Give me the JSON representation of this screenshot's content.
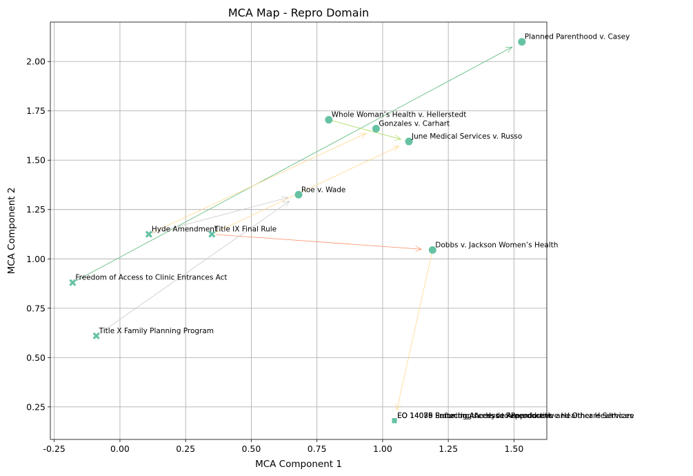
{
  "chart_data": {
    "type": "scatter",
    "title": "MCA Map - Repro Domain",
    "xlabel": "MCA Component 1",
    "ylabel": "MCA Component 2",
    "xlim": [
      -0.265,
      1.625
    ],
    "ylim": [
      0.085,
      2.2
    ],
    "xticks": [
      -0.25,
      0.0,
      0.25,
      0.5,
      0.75,
      1.0,
      1.25,
      1.5
    ],
    "yticks": [
      0.25,
      0.5,
      0.75,
      1.0,
      1.25,
      1.5,
      1.75,
      2.0
    ],
    "grid": true,
    "marker_color": "#66c2a5",
    "cases": [
      {
        "id": "casey",
        "label": "Planned Parenthood v. Casey",
        "x": 1.53,
        "y": 2.1
      },
      {
        "id": "whole",
        "label": "Whole Woman’s Health v. Hellerstedt",
        "x": 0.795,
        "y": 1.705
      },
      {
        "id": "gonzales",
        "label": "Gonzales v. Carhart",
        "x": 0.975,
        "y": 1.66
      },
      {
        "id": "june",
        "label": "June Medical Services v. Russo",
        "x": 1.1,
        "y": 1.595
      },
      {
        "id": "roe",
        "label": "Roe v. Wade",
        "x": 0.68,
        "y": 1.325
      },
      {
        "id": "dobbs",
        "label": "Dobbs v. Jackson Women’s Health",
        "x": 1.19,
        "y": 1.045
      }
    ],
    "laws": [
      {
        "id": "hyde",
        "label": "Hyde Amendment",
        "x": 0.11,
        "y": 1.125
      },
      {
        "id": "titleix",
        "label": "Title IX Final Rule",
        "x": 0.35,
        "y": 1.125
      },
      {
        "id": "face",
        "label": "Freedom of Access to Clinic Entrances Act",
        "x": -0.18,
        "y": 0.88
      },
      {
        "id": "titlex",
        "label": "Title X Family Planning Program",
        "x": -0.09,
        "y": 0.61
      }
    ],
    "orders": [
      {
        "id": "eo1",
        "label": "EO 14076 Protecting Access to Reproductive Healthcare Services",
        "x": 1.045,
        "y": 0.18
      },
      {
        "id": "eo2",
        "label": "EO 14079 Securing Access to Reproductive and Other Healthcare",
        "x": 1.045,
        "y": 0.18
      },
      {
        "id": "eo3",
        "label": "EO 14085 Enforcing the Hyde Amendment",
        "x": 1.045,
        "y": 0.18
      }
    ],
    "arrows": [
      {
        "from": "face",
        "to": "casey",
        "color": "#ffd88a"
      },
      {
        "from": "face",
        "to": "casey",
        "color": "#a6d854"
      },
      {
        "from": "face",
        "to": "casey",
        "color": "#66c2a5"
      },
      {
        "from": "hyde",
        "to": "gonzales",
        "color": "#ffd88a"
      },
      {
        "from": "hyde",
        "to": "roe",
        "color": "#c8c8c8"
      },
      {
        "from": "titleix",
        "to": "june",
        "color": "#ffd88a"
      },
      {
        "from": "titleix",
        "to": "dobbs",
        "color": "#fc8d62"
      },
      {
        "from": "titlex",
        "to": "roe",
        "color": "#c8c8c8"
      },
      {
        "from": "whole",
        "to": "june",
        "color": "#a6d854"
      },
      {
        "from": "dobbs",
        "to": "eo1",
        "color": "#ffd88a"
      }
    ]
  }
}
